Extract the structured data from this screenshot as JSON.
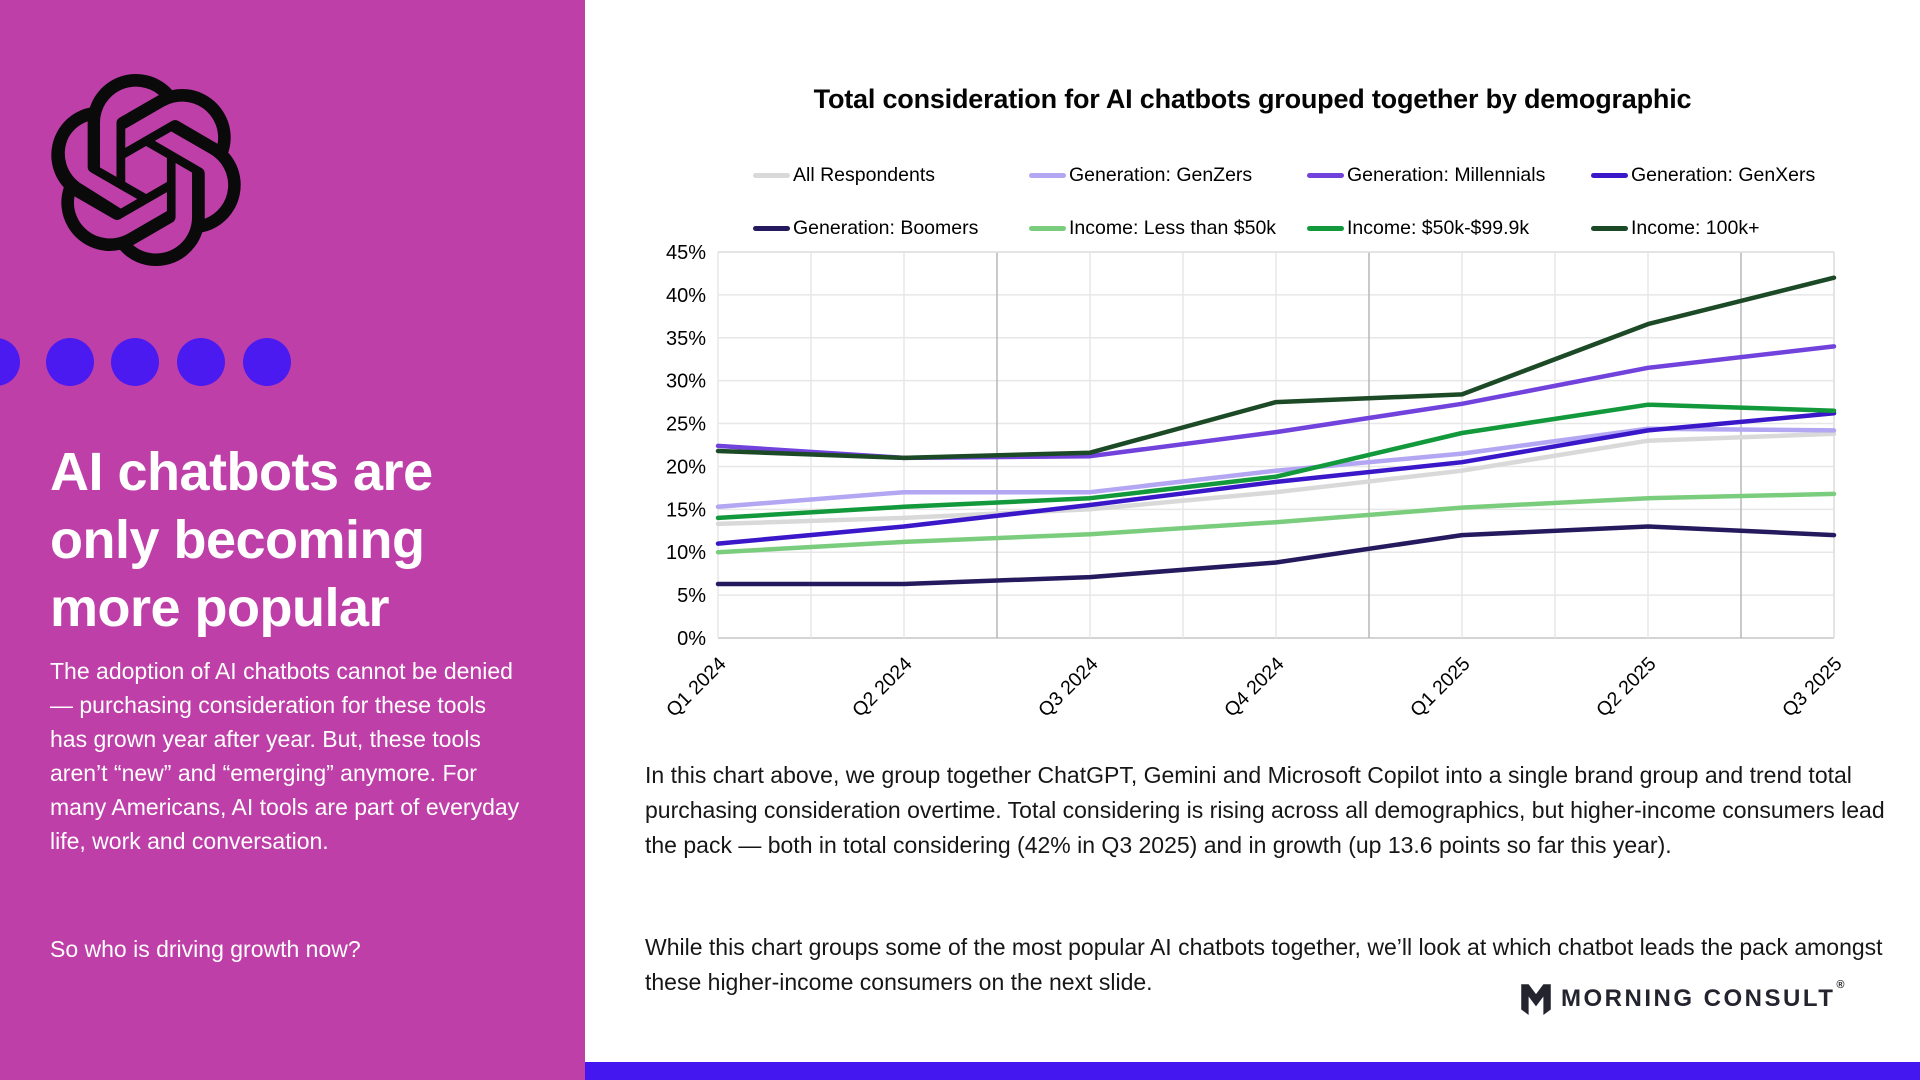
{
  "left_panel": {
    "title_lines": [
      "AI chatbots are",
      "only becoming",
      "more popular"
    ],
    "body": "The adoption of AI chatbots cannot be denied — purchasing consideration for these tools has grown year after year. But, these tools aren’t “new” and “emerging” anymore. For many Americans, AI tools are part of everyday life, work and conversation.",
    "question": "So who is driving growth now?",
    "colors": {
      "background": "#bf3fa9",
      "dot": "#4a1af1"
    }
  },
  "chart_data": {
    "type": "line",
    "title": "Total consideration for AI chatbots grouped together by demographic",
    "categories": [
      "Q1 2024",
      "Q2 2024",
      "Q3 2024",
      "Q4 2024",
      "Q1 2025",
      "Q2 2025",
      "Q3 2025"
    ],
    "ylim": [
      0,
      45
    ],
    "ytick_step": 5,
    "ytick_suffix": "%",
    "grid": true,
    "legend_position": "top",
    "series": [
      {
        "name": "All Respondents",
        "color": "#d9d9d9",
        "values": [
          13.3,
          14.0,
          15.0,
          17.0,
          19.5,
          23.0,
          23.8
        ]
      },
      {
        "name": "Generation: GenZers",
        "color": "#b3a6f2",
        "values": [
          15.3,
          17.0,
          17.0,
          19.5,
          21.5,
          24.4,
          24.2
        ]
      },
      {
        "name": "Generation: Millennials",
        "color": "#7142dc",
        "values": [
          22.4,
          21.0,
          21.2,
          24.0,
          27.3,
          31.5,
          34.0
        ]
      },
      {
        "name": "Generation: GenXers",
        "color": "#3a18c9",
        "values": [
          11.0,
          13.0,
          15.5,
          18.2,
          20.5,
          24.2,
          26.2
        ]
      },
      {
        "name": "Generation: Boomers",
        "color": "#261a5e",
        "values": [
          6.3,
          6.3,
          7.1,
          8.8,
          12.0,
          13.0,
          12.0
        ]
      },
      {
        "name": "Income: Less than $50k",
        "color": "#7bcd7e",
        "values": [
          10.0,
          11.2,
          12.1,
          13.5,
          15.2,
          16.3,
          16.8
        ]
      },
      {
        "name": "Income: $50k-$99.9k",
        "color": "#12993b",
        "values": [
          14.0,
          15.3,
          16.3,
          18.8,
          23.9,
          27.2,
          26.5
        ]
      },
      {
        "name": "Income: 100k+",
        "color": "#1d4a26",
        "values": [
          21.8,
          21.0,
          21.6,
          27.5,
          28.4,
          36.6,
          42.0
        ]
      }
    ]
  },
  "analysis": {
    "p1": "In this chart above, we group together ChatGPT, Gemini and Microsoft Copilot into a single brand group and trend total purchasing consideration overtime. Total considering is rising across all demographics, but higher-income consumers lead the pack — both in total considering (42% in Q3 2025) and in growth (up 13.6 points so far this year).",
    "p2": "While this chart groups some of the most popular AI chatbots together, we’ll look at which chatbot leads the pack amongst these higher-income consumers on the next slide."
  },
  "footer": {
    "brand": "MORNING CONSULT",
    "reg": "®"
  }
}
